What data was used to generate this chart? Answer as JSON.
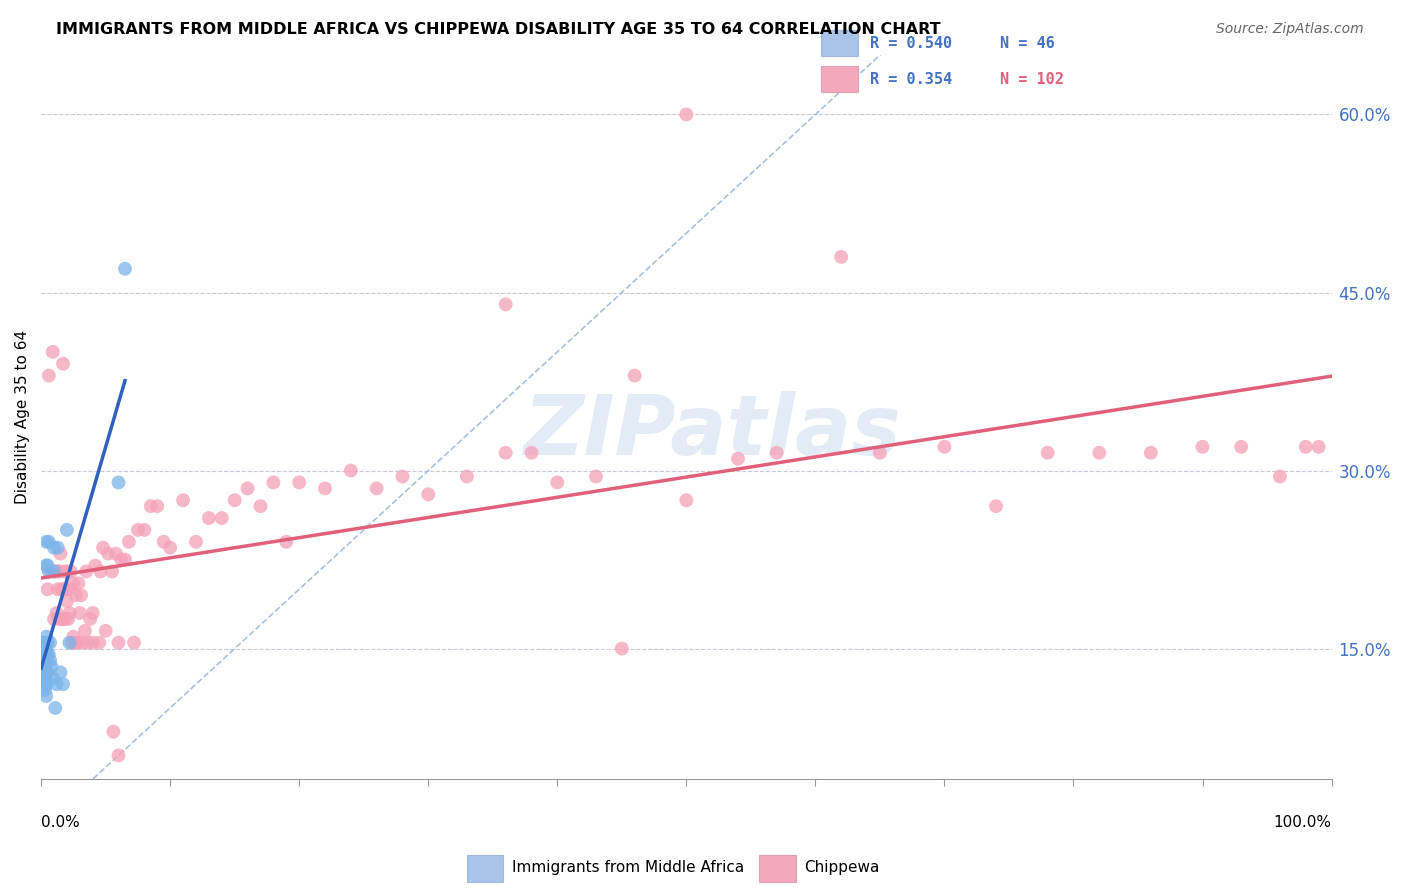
{
  "title": "IMMIGRANTS FROM MIDDLE AFRICA VS CHIPPEWA DISABILITY AGE 35 TO 64 CORRELATION CHART",
  "source": "Source: ZipAtlas.com",
  "ylabel": "Disability Age 35 to 64",
  "ytick_vals": [
    0.15,
    0.3,
    0.45,
    0.6
  ],
  "ytick_labels": [
    "15.0%",
    "30.0%",
    "45.0%",
    "60.0%"
  ],
  "xlim": [
    0.0,
    1.0
  ],
  "ylim": [
    0.04,
    0.65
  ],
  "legend1_r": "0.540",
  "legend1_n": "46",
  "legend2_r": "0.354",
  "legend2_n": "102",
  "legend1_color": "#a8c4e8",
  "legend2_color": "#f4a8bc",
  "watermark_text": "ZIPatlas",
  "blue_scatter_color": "#7ab4e8",
  "pink_scatter_color": "#f4a0b8",
  "blue_line_color": "#3060c0",
  "pink_line_color": "#e0607a",
  "diag_line_color": "#a0b8d8",
  "blue_points_x": [
    0.001,
    0.001,
    0.001,
    0.002,
    0.002,
    0.002,
    0.002,
    0.003,
    0.003,
    0.003,
    0.003,
    0.003,
    0.003,
    0.003,
    0.003,
    0.003,
    0.004,
    0.004,
    0.004,
    0.004,
    0.004,
    0.004,
    0.004,
    0.004,
    0.005,
    0.005,
    0.005,
    0.005,
    0.006,
    0.006,
    0.006,
    0.007,
    0.007,
    0.008,
    0.009,
    0.01,
    0.01,
    0.011,
    0.012,
    0.013,
    0.015,
    0.017,
    0.02,
    0.022,
    0.06,
    0.065
  ],
  "blue_points_y": [
    0.135,
    0.145,
    0.155,
    0.125,
    0.135,
    0.145,
    0.155,
    0.115,
    0.12,
    0.125,
    0.13,
    0.135,
    0.14,
    0.145,
    0.15,
    0.155,
    0.11,
    0.12,
    0.13,
    0.14,
    0.15,
    0.16,
    0.22,
    0.24,
    0.13,
    0.145,
    0.155,
    0.22,
    0.145,
    0.215,
    0.24,
    0.14,
    0.155,
    0.135,
    0.125,
    0.215,
    0.235,
    0.1,
    0.12,
    0.235,
    0.13,
    0.12,
    0.25,
    0.155,
    0.29,
    0.47
  ],
  "pink_points_x": [
    0.005,
    0.006,
    0.008,
    0.009,
    0.01,
    0.011,
    0.012,
    0.013,
    0.013,
    0.014,
    0.014,
    0.015,
    0.015,
    0.016,
    0.016,
    0.017,
    0.017,
    0.018,
    0.018,
    0.019,
    0.02,
    0.02,
    0.021,
    0.022,
    0.022,
    0.023,
    0.024,
    0.025,
    0.025,
    0.026,
    0.027,
    0.028,
    0.029,
    0.03,
    0.031,
    0.032,
    0.034,
    0.035,
    0.036,
    0.038,
    0.04,
    0.04,
    0.042,
    0.045,
    0.046,
    0.048,
    0.05,
    0.052,
    0.055,
    0.056,
    0.058,
    0.06,
    0.062,
    0.065,
    0.068,
    0.072,
    0.075,
    0.08,
    0.085,
    0.09,
    0.095,
    0.1,
    0.11,
    0.12,
    0.13,
    0.14,
    0.15,
    0.16,
    0.17,
    0.18,
    0.19,
    0.2,
    0.22,
    0.24,
    0.26,
    0.28,
    0.3,
    0.33,
    0.36,
    0.38,
    0.4,
    0.43,
    0.46,
    0.5,
    0.54,
    0.57,
    0.62,
    0.65,
    0.7,
    0.74,
    0.78,
    0.82,
    0.86,
    0.9,
    0.93,
    0.96,
    0.98,
    0.99,
    0.36,
    0.06,
    0.45,
    0.5
  ],
  "pink_points_y": [
    0.2,
    0.38,
    0.215,
    0.4,
    0.175,
    0.215,
    0.18,
    0.2,
    0.215,
    0.175,
    0.215,
    0.175,
    0.23,
    0.175,
    0.2,
    0.175,
    0.39,
    0.2,
    0.215,
    0.175,
    0.19,
    0.215,
    0.175,
    0.18,
    0.2,
    0.215,
    0.155,
    0.16,
    0.205,
    0.155,
    0.195,
    0.155,
    0.205,
    0.18,
    0.195,
    0.155,
    0.165,
    0.215,
    0.155,
    0.175,
    0.155,
    0.18,
    0.22,
    0.155,
    0.215,
    0.235,
    0.165,
    0.23,
    0.215,
    0.08,
    0.23,
    0.155,
    0.225,
    0.225,
    0.24,
    0.155,
    0.25,
    0.25,
    0.27,
    0.27,
    0.24,
    0.235,
    0.275,
    0.24,
    0.26,
    0.26,
    0.275,
    0.285,
    0.27,
    0.29,
    0.24,
    0.29,
    0.285,
    0.3,
    0.285,
    0.295,
    0.28,
    0.295,
    0.315,
    0.315,
    0.29,
    0.295,
    0.38,
    0.275,
    0.31,
    0.315,
    0.48,
    0.315,
    0.32,
    0.27,
    0.315,
    0.315,
    0.315,
    0.32,
    0.32,
    0.295,
    0.32,
    0.32,
    0.44,
    0.06,
    0.15,
    0.6
  ]
}
